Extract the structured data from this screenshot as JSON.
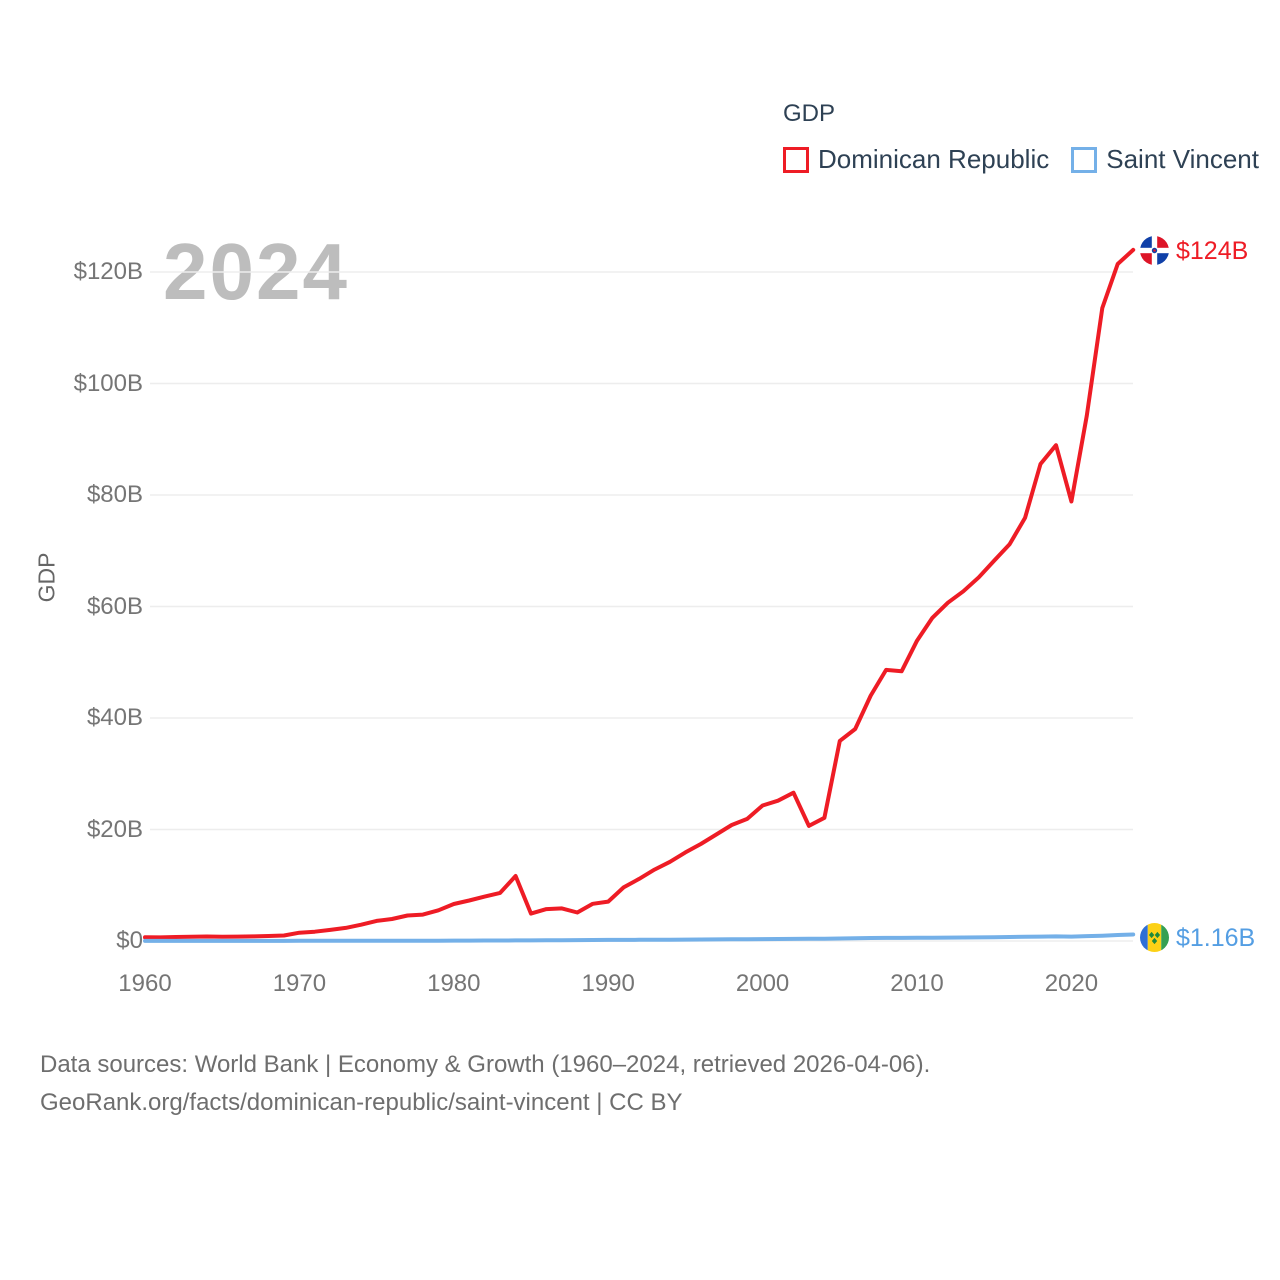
{
  "legend": {
    "title": "GDP",
    "items": [
      {
        "label": "Dominican Republic",
        "color": "#ee1c25"
      },
      {
        "label": "Saint Vincent",
        "color": "#74b0e8"
      }
    ]
  },
  "watermark": "2024",
  "y_axis": {
    "label": "GDP",
    "ticks": [
      "$0",
      "$20B",
      "$40B",
      "$60B",
      "$80B",
      "$100B",
      "$120B"
    ],
    "tick_values": [
      0,
      20,
      40,
      60,
      80,
      100,
      120
    ]
  },
  "x_axis": {
    "ticks": [
      "1960",
      "1970",
      "1980",
      "1990",
      "2000",
      "2010",
      "2020"
    ],
    "tick_values": [
      1960,
      1970,
      1980,
      1990,
      2000,
      2010,
      2020
    ]
  },
  "end_labels": {
    "dominican_republic": {
      "text": "$124B",
      "color": "#ee1c25",
      "flag": "dominican-republic-flag"
    },
    "saint_vincent": {
      "text": "$1.16B",
      "color": "#549ee3",
      "flag": "saint-vincent-flag"
    }
  },
  "footer": {
    "line1": "Data sources: World Bank | Economy & Growth (1960–2024, retrieved 2026-04-06).",
    "line2": "GeoRank.org/facts/dominican-republic/saint-vincent | CC BY"
  },
  "chart_data": {
    "type": "line",
    "title": "GDP",
    "xlabel": "",
    "ylabel": "GDP",
    "x_range": [
      1960,
      2024
    ],
    "ylim": [
      0,
      128
    ],
    "grid": "horizontal",
    "legend_position": "top-right",
    "x": [
      1960,
      1961,
      1962,
      1963,
      1964,
      1965,
      1966,
      1967,
      1968,
      1969,
      1970,
      1971,
      1972,
      1973,
      1974,
      1975,
      1976,
      1977,
      1978,
      1979,
      1980,
      1981,
      1982,
      1983,
      1984,
      1985,
      1986,
      1987,
      1988,
      1989,
      1990,
      1991,
      1992,
      1993,
      1994,
      1995,
      1996,
      1997,
      1998,
      1999,
      2000,
      2001,
      2002,
      2003,
      2004,
      2005,
      2006,
      2007,
      2008,
      2009,
      2010,
      2011,
      2012,
      2013,
      2014,
      2015,
      2016,
      2017,
      2018,
      2019,
      2020,
      2021,
      2022,
      2023,
      2024
    ],
    "series": [
      {
        "name": "Dominican Republic",
        "color": "#ee1c25",
        "end_value_label": "$124B",
        "values": [
          0.67,
          0.64,
          0.71,
          0.78,
          0.8,
          0.77,
          0.79,
          0.83,
          0.89,
          0.99,
          1.49,
          1.67,
          1.99,
          2.35,
          2.93,
          3.6,
          3.95,
          4.58,
          4.73,
          5.5,
          6.63,
          7.27,
          7.97,
          8.62,
          11.66,
          4.91,
          5.72,
          5.85,
          5.12,
          6.67,
          7.07,
          9.61,
          11.14,
          12.8,
          14.2,
          15.9,
          17.4,
          19.1,
          20.8,
          21.9,
          24.31,
          25.16,
          26.6,
          20.65,
          22.1,
          35.89,
          38.02,
          44.01,
          48.63,
          48.38,
          53.86,
          57.97,
          60.68,
          62.72,
          65.23,
          68.23,
          71.16,
          75.93,
          85.56,
          88.94,
          78.84,
          94.24,
          113.54,
          121.44,
          123.96
        ]
      },
      {
        "name": "Saint Vincent",
        "color": "#74b0e8",
        "end_value_label": "$1.16B",
        "values": [
          0.013,
          0.014,
          0.015,
          0.016,
          0.017,
          0.019,
          0.02,
          0.021,
          0.023,
          0.025,
          0.027,
          0.029,
          0.031,
          0.034,
          0.037,
          0.041,
          0.045,
          0.05,
          0.055,
          0.062,
          0.07,
          0.078,
          0.086,
          0.094,
          0.103,
          0.113,
          0.124,
          0.137,
          0.155,
          0.172,
          0.19,
          0.205,
          0.22,
          0.232,
          0.242,
          0.255,
          0.27,
          0.285,
          0.305,
          0.325,
          0.345,
          0.36,
          0.375,
          0.395,
          0.42,
          0.445,
          0.49,
          0.53,
          0.56,
          0.565,
          0.575,
          0.59,
          0.605,
          0.625,
          0.65,
          0.68,
          0.71,
          0.745,
          0.785,
          0.82,
          0.79,
          0.87,
          0.95,
          1.07,
          1.16
        ]
      }
    ]
  }
}
